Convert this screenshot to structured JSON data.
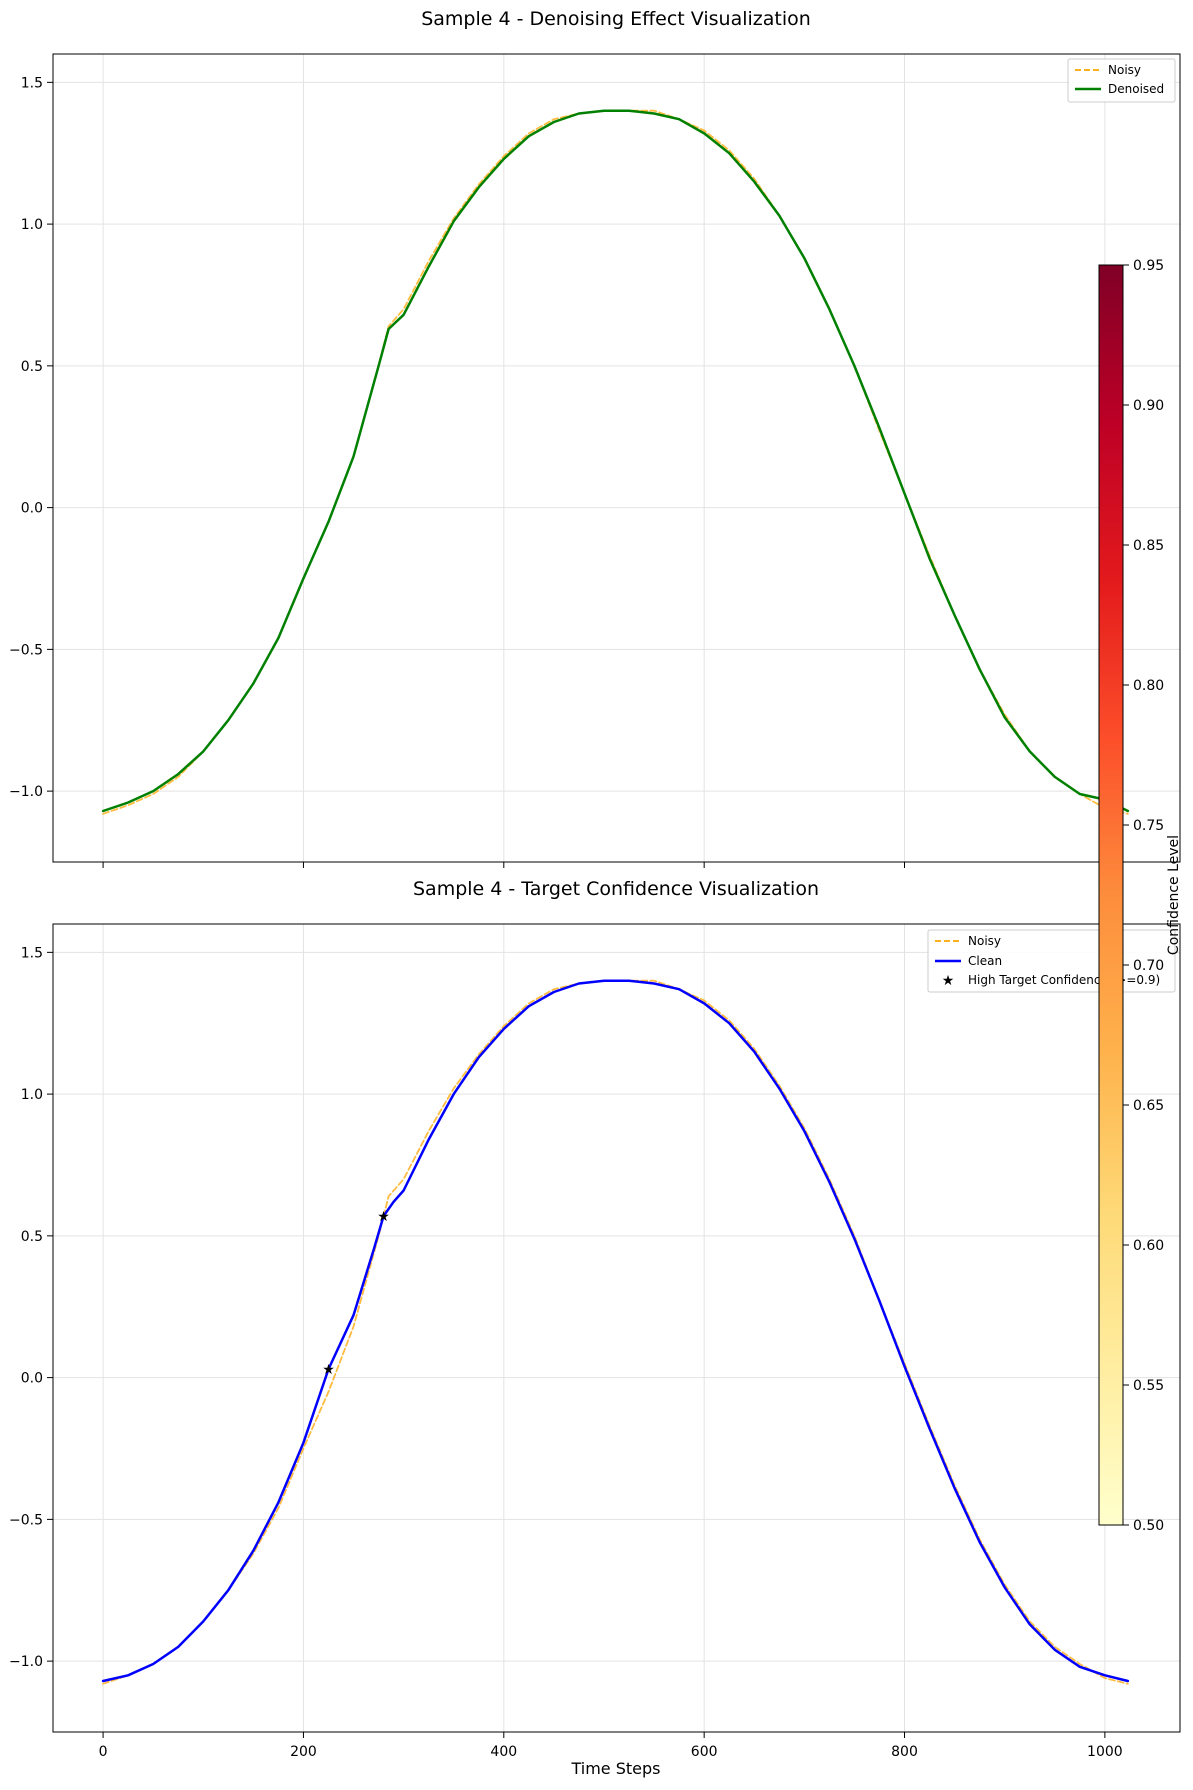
{
  "colors": {
    "noisy": "#ffa500",
    "denoised": "#008000",
    "clean": "#0000ff",
    "marker": "#000000",
    "grid": "#e3e3e3"
  },
  "chart_data": [
    {
      "type": "line",
      "title": "Sample 4 - Denoising Effect Visualization",
      "xlabel": "",
      "ylabel": "",
      "xlim": [
        -50,
        1075
      ],
      "ylim": [
        -1.25,
        1.6
      ],
      "xticks": [
        0,
        200,
        400,
        600,
        800,
        1000
      ],
      "yticks": [
        -1.0,
        -0.5,
        0.0,
        0.5,
        1.0,
        1.5
      ],
      "ytick_labels": [
        "−1.0",
        "−0.5",
        "0.0",
        "0.5",
        "1.0",
        "1.5"
      ],
      "grid": true,
      "legend_position": "top-right",
      "legend": [
        "Noisy",
        "Denoised"
      ],
      "series": [
        {
          "name": "Noisy",
          "style": "dashed",
          "color": "#ffa500",
          "x": [
            0,
            25,
            50,
            75,
            100,
            125,
            150,
            175,
            200,
            225,
            250,
            275,
            285,
            300,
            325,
            350,
            375,
            400,
            425,
            450,
            475,
            500,
            525,
            550,
            575,
            600,
            625,
            650,
            675,
            700,
            725,
            750,
            775,
            800,
            825,
            850,
            875,
            900,
            925,
            950,
            975,
            1000,
            1023
          ],
          "y": [
            -1.08,
            -1.05,
            -1.01,
            -0.95,
            -0.86,
            -0.75,
            -0.62,
            -0.46,
            -0.25,
            -0.05,
            0.18,
            0.5,
            0.64,
            0.7,
            0.87,
            1.02,
            1.14,
            1.24,
            1.32,
            1.37,
            1.39,
            1.4,
            1.4,
            1.4,
            1.37,
            1.33,
            1.26,
            1.16,
            1.03,
            0.88,
            0.7,
            0.5,
            0.27,
            0.05,
            -0.17,
            -0.38,
            -0.57,
            -0.73,
            -0.86,
            -0.95,
            -1.01,
            -1.06,
            -1.08
          ]
        },
        {
          "name": "Denoised",
          "style": "solid",
          "color": "#008000",
          "x": [
            0,
            25,
            50,
            75,
            100,
            125,
            150,
            175,
            200,
            225,
            250,
            275,
            285,
            300,
            325,
            350,
            375,
            400,
            425,
            450,
            475,
            500,
            525,
            550,
            575,
            600,
            625,
            650,
            675,
            700,
            725,
            750,
            775,
            800,
            825,
            850,
            875,
            900,
            925,
            950,
            975,
            1000,
            1023
          ],
          "y": [
            -1.07,
            -1.04,
            -1.0,
            -0.94,
            -0.86,
            -0.75,
            -0.62,
            -0.46,
            -0.25,
            -0.05,
            0.18,
            0.5,
            0.63,
            0.68,
            0.85,
            1.01,
            1.13,
            1.23,
            1.31,
            1.36,
            1.39,
            1.4,
            1.4,
            1.39,
            1.37,
            1.32,
            1.25,
            1.15,
            1.03,
            0.88,
            0.7,
            0.5,
            0.28,
            0.05,
            -0.18,
            -0.38,
            -0.57,
            -0.74,
            -0.86,
            -0.95,
            -1.01,
            -1.03,
            -1.07
          ]
        }
      ]
    },
    {
      "type": "line",
      "title": "Sample 4 - Target Confidence Visualization",
      "xlabel": "Time Steps",
      "ylabel": "",
      "xlim": [
        -50,
        1075
      ],
      "ylim": [
        -1.25,
        1.6
      ],
      "xticks": [
        0,
        200,
        400,
        600,
        800,
        1000
      ],
      "xtick_labels": [
        "0",
        "200",
        "400",
        "600",
        "800",
        "1000"
      ],
      "yticks": [
        -1.0,
        -0.5,
        0.0,
        0.5,
        1.0,
        1.5
      ],
      "ytick_labels": [
        "−1.0",
        "−0.5",
        "0.0",
        "0.5",
        "1.0",
        "1.5"
      ],
      "grid": true,
      "legend_position": "top-right",
      "legend": [
        "Noisy",
        "Clean",
        "High Target Confidence (>=0.9)"
      ],
      "series": [
        {
          "name": "Noisy",
          "style": "dashed",
          "color": "#ffa500",
          "x": [
            0,
            25,
            50,
            75,
            100,
            125,
            150,
            175,
            200,
            225,
            250,
            275,
            285,
            300,
            325,
            350,
            375,
            400,
            425,
            450,
            475,
            500,
            525,
            550,
            575,
            600,
            625,
            650,
            675,
            700,
            725,
            750,
            775,
            800,
            825,
            850,
            875,
            900,
            925,
            950,
            975,
            1000,
            1023
          ],
          "y": [
            -1.08,
            -1.05,
            -1.01,
            -0.95,
            -0.86,
            -0.75,
            -0.62,
            -0.46,
            -0.25,
            -0.05,
            0.18,
            0.5,
            0.64,
            0.7,
            0.87,
            1.02,
            1.14,
            1.24,
            1.32,
            1.37,
            1.39,
            1.4,
            1.4,
            1.4,
            1.37,
            1.33,
            1.26,
            1.16,
            1.03,
            0.88,
            0.7,
            0.5,
            0.27,
            0.05,
            -0.17,
            -0.38,
            -0.57,
            -0.73,
            -0.86,
            -0.95,
            -1.01,
            -1.06,
            -1.08
          ]
        },
        {
          "name": "Clean",
          "style": "solid",
          "color": "#0000ff",
          "x": [
            0,
            25,
            50,
            75,
            100,
            125,
            150,
            175,
            200,
            225,
            250,
            270,
            280,
            290,
            300,
            325,
            350,
            375,
            400,
            425,
            450,
            475,
            500,
            525,
            550,
            575,
            600,
            625,
            650,
            675,
            700,
            725,
            750,
            775,
            800,
            825,
            850,
            875,
            900,
            925,
            950,
            975,
            1000,
            1023
          ],
          "y": [
            -1.07,
            -1.05,
            -1.01,
            -0.95,
            -0.86,
            -0.75,
            -0.61,
            -0.44,
            -0.23,
            0.03,
            0.22,
            0.45,
            0.57,
            0.62,
            0.66,
            0.84,
            1.0,
            1.13,
            1.23,
            1.31,
            1.36,
            1.39,
            1.4,
            1.4,
            1.39,
            1.37,
            1.32,
            1.25,
            1.15,
            1.02,
            0.87,
            0.69,
            0.49,
            0.27,
            0.04,
            -0.18,
            -0.39,
            -0.58,
            -0.74,
            -0.87,
            -0.96,
            -1.02,
            -1.05,
            -1.07
          ]
        },
        {
          "name": "High Target Confidence (>=0.9)",
          "style": "marker",
          "color": "#000000",
          "x": [
            225,
            280
          ],
          "y": [
            0.03,
            0.57
          ]
        }
      ]
    },
    {
      "type": "colorbar",
      "label": "Confidence Level",
      "range": [
        0.5,
        0.95
      ],
      "ticks": [
        0.5,
        0.55,
        0.6,
        0.65,
        0.7,
        0.75,
        0.8,
        0.85,
        0.9,
        0.95
      ],
      "tick_labels": [
        "0.50",
        "0.55",
        "0.60",
        "0.65",
        "0.70",
        "0.75",
        "0.80",
        "0.85",
        "0.90",
        "0.95"
      ],
      "colormap": "YlOrRd",
      "colormap_stops": [
        "#ffffcc",
        "#ffeda0",
        "#fed976",
        "#feb24c",
        "#fd8d3c",
        "#fc4e2a",
        "#e31a1c",
        "#bd0026",
        "#800026"
      ]
    }
  ]
}
